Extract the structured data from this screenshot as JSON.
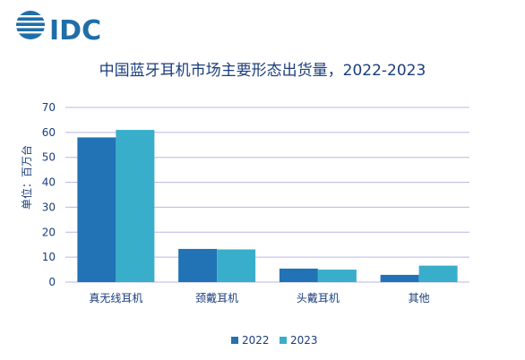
{
  "brand": {
    "logo_text": "IDC",
    "color": "#1f6ea8"
  },
  "chart_data": {
    "type": "bar",
    "title": "中国蓝牙耳机市场主要形态出货量，2022-2023",
    "ylabel": "单位：百万台",
    "xlabel": "",
    "categories": [
      "真无线耳机",
      "颈戴耳机",
      "头戴耳机",
      "其他"
    ],
    "series": [
      {
        "name": "2022",
        "values": [
          58,
          13.3,
          5.4,
          2.9
        ],
        "color": "#2273b5"
      },
      {
        "name": "2023",
        "values": [
          61,
          13.1,
          5.0,
          6.6
        ],
        "color": "#39aecb"
      }
    ],
    "ylim": [
      0,
      70
    ],
    "yticks": [
      0,
      10,
      20,
      30,
      40,
      50,
      60,
      70
    ],
    "grid": true,
    "gridline_color": "#b7b7e6",
    "legend_position": "bottom"
  }
}
